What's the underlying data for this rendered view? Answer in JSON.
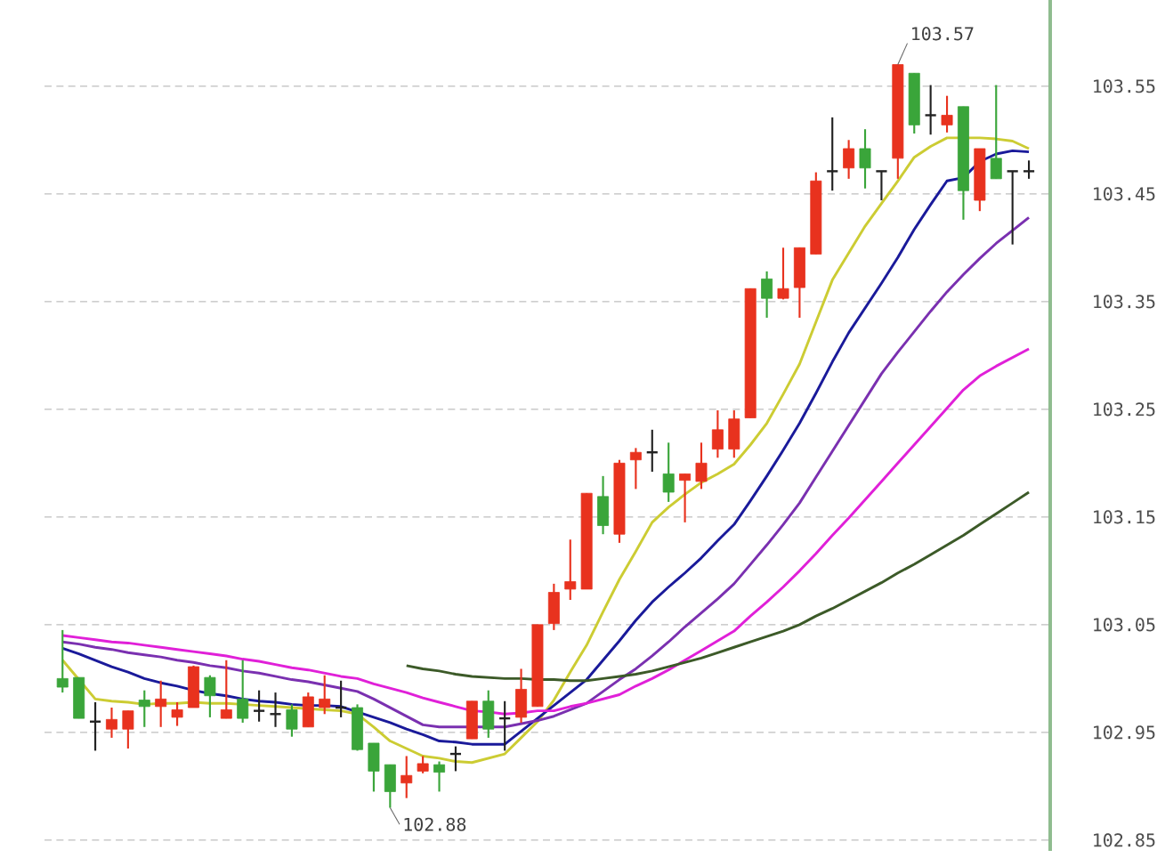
{
  "chart_data": {
    "type": "candlestick",
    "categories": [
      null,
      null,
      null,
      null,
      null,
      null,
      null,
      null,
      null,
      null,
      null,
      null,
      null,
      null,
      null,
      null,
      null,
      null,
      null,
      null,
      null,
      null,
      null,
      null,
      null,
      null,
      null,
      null,
      null,
      null,
      null,
      null,
      null,
      null,
      null,
      null,
      null,
      null,
      null,
      null,
      null,
      null,
      null,
      null,
      null,
      null,
      null,
      null,
      null,
      null,
      null,
      null,
      null,
      null,
      null,
      null,
      null,
      null,
      null,
      null
    ],
    "ohlc": [
      [
        103.0,
        103.045,
        102.987,
        102.992
      ],
      [
        103.001,
        103.001,
        102.963,
        102.963
      ],
      [
        102.96,
        102.978,
        102.933,
        102.96
      ],
      [
        102.953,
        102.973,
        102.945,
        102.962
      ],
      [
        102.953,
        102.97,
        102.935,
        102.97
      ],
      [
        102.98,
        102.989,
        102.955,
        102.974
      ],
      [
        102.974,
        102.998,
        102.955,
        102.981
      ],
      [
        102.964,
        102.978,
        102.956,
        102.971
      ],
      [
        102.973,
        103.012,
        102.973,
        103.011
      ],
      [
        103.001,
        103.003,
        102.964,
        102.984
      ],
      [
        102.963,
        103.017,
        102.963,
        102.971
      ],
      [
        102.981,
        103.017,
        102.959,
        102.963
      ],
      [
        102.97,
        102.989,
        102.96,
        102.97
      ],
      [
        102.967,
        102.987,
        102.955,
        102.967
      ],
      [
        102.971,
        102.976,
        102.946,
        102.953
      ],
      [
        102.955,
        102.987,
        102.955,
        102.983
      ],
      [
        102.973,
        103.003,
        102.967,
        102.981
      ],
      [
        102.973,
        102.998,
        102.964,
        102.973
      ],
      [
        102.973,
        102.976,
        102.933,
        102.934
      ],
      [
        102.94,
        102.94,
        102.895,
        102.914
      ],
      [
        102.92,
        102.92,
        102.88,
        102.895
      ],
      [
        102.903,
        102.928,
        102.889,
        102.91
      ],
      [
        102.914,
        102.928,
        102.912,
        102.921
      ],
      [
        102.92,
        102.923,
        102.895,
        102.913
      ],
      [
        102.93,
        102.937,
        102.914,
        102.93
      ],
      [
        102.944,
        102.979,
        102.944,
        102.979
      ],
      [
        102.979,
        102.989,
        102.945,
        102.953
      ],
      [
        102.963,
        102.979,
        102.933,
        102.963
      ],
      [
        102.964,
        103.009,
        102.959,
        102.99
      ],
      [
        102.974,
        103.05,
        102.974,
        103.05
      ],
      [
        103.051,
        103.088,
        103.045,
        103.08
      ],
      [
        103.083,
        103.129,
        103.073,
        103.09
      ],
      [
        103.083,
        103.172,
        103.083,
        103.172
      ],
      [
        103.169,
        103.188,
        103.134,
        103.142
      ],
      [
        103.134,
        103.203,
        103.126,
        103.2
      ],
      [
        103.203,
        103.214,
        103.176,
        103.21
      ],
      [
        103.21,
        103.231,
        103.192,
        103.21
      ],
      [
        103.19,
        103.219,
        103.164,
        103.173
      ],
      [
        103.184,
        103.19,
        103.145,
        103.19
      ],
      [
        103.183,
        103.219,
        103.176,
        103.2
      ],
      [
        103.213,
        103.249,
        103.205,
        103.231
      ],
      [
        103.213,
        103.249,
        103.205,
        103.241
      ],
      [
        103.242,
        103.362,
        103.242,
        103.362
      ],
      [
        103.371,
        103.378,
        103.335,
        103.353
      ],
      [
        103.353,
        103.4,
        103.352,
        103.362
      ],
      [
        103.363,
        103.4,
        103.335,
        103.4
      ],
      [
        103.394,
        103.47,
        103.394,
        103.462
      ],
      [
        103.471,
        103.521,
        103.453,
        103.471
      ],
      [
        103.474,
        103.5,
        103.464,
        103.492
      ],
      [
        103.492,
        103.51,
        103.455,
        103.474
      ],
      [
        103.471,
        103.471,
        103.444,
        103.471
      ],
      [
        103.483,
        103.57,
        103.464,
        103.57
      ],
      [
        103.562,
        103.562,
        103.506,
        103.514
      ],
      [
        103.523,
        103.551,
        103.505,
        103.523
      ],
      [
        103.514,
        103.541,
        103.507,
        103.523
      ],
      [
        103.531,
        103.531,
        103.426,
        103.453
      ],
      [
        103.444,
        103.492,
        103.434,
        103.492
      ],
      [
        103.483,
        103.551,
        103.464,
        103.464
      ],
      [
        103.471,
        103.471,
        103.403,
        103.471
      ],
      [
        103.471,
        103.481,
        103.464,
        103.471
      ]
    ],
    "colors": [
      "#3aa53a",
      "#3aa53a",
      "#222222",
      "#e8321e",
      "#e8321e",
      "#3aa53a",
      "#e8321e",
      "#e8321e",
      "#e8321e",
      "#3aa53a",
      "#e8321e",
      "#3aa53a",
      "#222222",
      "#222222",
      "#3aa53a",
      "#e8321e",
      "#e8321e",
      "#222222",
      "#3aa53a",
      "#3aa53a",
      "#3aa53a",
      "#e8321e",
      "#e8321e",
      "#3aa53a",
      "#222222",
      "#e8321e",
      "#3aa53a",
      "#222222",
      "#e8321e",
      "#e8321e",
      "#e8321e",
      "#e8321e",
      "#e8321e",
      "#3aa53a",
      "#e8321e",
      "#e8321e",
      "#222222",
      "#3aa53a",
      "#e8321e",
      "#e8321e",
      "#e8321e",
      "#e8321e",
      "#e8321e",
      "#3aa53a",
      "#e8321e",
      "#e8321e",
      "#e8321e",
      "#222222",
      "#e8321e",
      "#3aa53a",
      "#222222",
      "#e8321e",
      "#3aa53a",
      "#222222",
      "#e8321e",
      "#3aa53a",
      "#e8321e",
      "#3aa53a",
      "#222222",
      "#222222"
    ],
    "series": [
      {
        "type": "line",
        "color": "#cccc33",
        "values": [
          103.017,
          102.999,
          102.981,
          102.979,
          102.978,
          102.976,
          102.977,
          102.977,
          102.978,
          102.977,
          102.977,
          102.976,
          102.975,
          102.974,
          102.973,
          102.972,
          102.971,
          102.97,
          102.967,
          102.955,
          102.942,
          102.935,
          102.928,
          102.926,
          102.923,
          102.922,
          102.926,
          102.93,
          102.945,
          102.96,
          102.98,
          103.006,
          103.031,
          103.062,
          103.092,
          103.118,
          103.145,
          103.159,
          103.171,
          103.182,
          103.19,
          103.199,
          103.217,
          103.237,
          103.264,
          103.292,
          103.331,
          103.37,
          103.395,
          103.42,
          103.441,
          103.462,
          103.484,
          103.494,
          103.502,
          103.502,
          103.502,
          103.501,
          103.499,
          103.492
        ]
      },
      {
        "type": "line",
        "color": "#1a1a9a",
        "values": [
          103.028,
          103.023,
          103.017,
          103.011,
          103.006,
          103.0,
          102.996,
          102.993,
          102.989,
          102.986,
          102.984,
          102.981,
          102.979,
          102.978,
          102.976,
          102.975,
          102.975,
          102.974,
          102.969,
          102.964,
          102.959,
          102.953,
          102.948,
          102.942,
          102.941,
          102.939,
          102.939,
          102.939,
          102.951,
          102.963,
          102.975,
          102.987,
          102.999,
          103.017,
          103.035,
          103.054,
          103.071,
          103.085,
          103.098,
          103.112,
          103.128,
          103.143,
          103.165,
          103.188,
          103.212,
          103.237,
          103.265,
          103.294,
          103.321,
          103.344,
          103.367,
          103.391,
          103.417,
          103.44,
          103.462,
          103.465,
          103.48,
          103.487,
          103.49,
          103.489
        ]
      },
      {
        "type": "line",
        "color": "#7a30b0",
        "values": [
          103.034,
          103.032,
          103.029,
          103.027,
          103.024,
          103.022,
          103.02,
          103.017,
          103.015,
          103.012,
          103.01,
          103.007,
          103.005,
          103.002,
          102.999,
          102.997,
          102.994,
          102.991,
          102.988,
          102.981,
          102.973,
          102.965,
          102.957,
          102.955,
          102.955,
          102.955,
          102.955,
          102.955,
          102.958,
          102.961,
          102.965,
          102.971,
          102.977,
          102.988,
          102.999,
          103.009,
          103.021,
          103.034,
          103.048,
          103.061,
          103.074,
          103.088,
          103.106,
          103.124,
          103.143,
          103.163,
          103.187,
          103.211,
          103.235,
          103.259,
          103.283,
          103.303,
          103.322,
          103.341,
          103.359,
          103.375,
          103.39,
          103.404,
          103.416,
          103.428
        ]
      },
      {
        "type": "line",
        "color": "#e020d8",
        "values": [
          103.04,
          103.038,
          103.036,
          103.034,
          103.033,
          103.031,
          103.029,
          103.027,
          103.025,
          103.023,
          103.021,
          103.018,
          103.016,
          103.013,
          103.01,
          103.008,
          103.005,
          103.002,
          103.0,
          102.995,
          102.991,
          102.987,
          102.982,
          102.978,
          102.974,
          102.97,
          102.969,
          102.967,
          102.968,
          102.97,
          102.97,
          102.974,
          102.977,
          102.981,
          102.985,
          102.993,
          103.0,
          103.008,
          103.017,
          103.026,
          103.035,
          103.044,
          103.058,
          103.071,
          103.085,
          103.1,
          103.116,
          103.133,
          103.149,
          103.166,
          103.183,
          103.2,
          103.217,
          103.234,
          103.251,
          103.268,
          103.281,
          103.29,
          103.298,
          103.306
        ]
      },
      {
        "type": "line",
        "color": "#3c5a28",
        "values": [
          null,
          null,
          null,
          null,
          null,
          null,
          null,
          null,
          null,
          null,
          null,
          null,
          null,
          null,
          null,
          null,
          null,
          null,
          null,
          null,
          null,
          103.012,
          103.009,
          103.007,
          103.004,
          103.002,
          103.001,
          103.0,
          103.0,
          102.999,
          102.999,
          102.998,
          102.998,
          103.0,
          103.002,
          103.004,
          103.007,
          103.011,
          103.015,
          103.019,
          103.024,
          103.029,
          103.034,
          103.039,
          103.044,
          103.05,
          103.058,
          103.065,
          103.073,
          103.081,
          103.089,
          103.098,
          103.106,
          103.115,
          103.124,
          103.133,
          103.143,
          103.153,
          103.163,
          103.173
        ]
      }
    ],
    "ylim": [
      102.84,
      103.63
    ],
    "yticks": [
      102.85,
      102.95,
      103.05,
      103.15,
      103.25,
      103.35,
      103.45,
      103.55
    ],
    "grid": "y",
    "tick_labels": "y",
    "annotations": [
      "103.57",
      "102.88"
    ]
  }
}
